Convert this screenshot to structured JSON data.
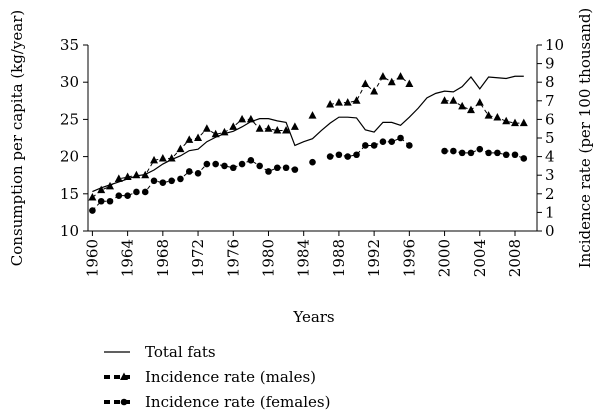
{
  "chart_data": {
    "type": "line",
    "x": [
      1960,
      1961,
      1962,
      1963,
      1964,
      1965,
      1966,
      1967,
      1968,
      1969,
      1970,
      1971,
      1972,
      1973,
      1974,
      1975,
      1976,
      1977,
      1978,
      1979,
      1980,
      1981,
      1982,
      1983,
      1984,
      1985,
      1986,
      1987,
      1988,
      1989,
      1990,
      1991,
      1992,
      1993,
      1994,
      1995,
      1996,
      1997,
      1998,
      1999,
      2000,
      2001,
      2002,
      2003,
      2004,
      2005,
      2006,
      2007,
      2008,
      2009
    ],
    "xlabel": "Years",
    "ylabel": "Consumption per capita (kg/year)",
    "y2label": "Incidence rate (per 100 thousand)",
    "xlim": [
      1959.5,
      2010.5
    ],
    "xticks": [
      1960,
      1964,
      1968,
      1972,
      1976,
      1980,
      1984,
      1988,
      1992,
      1996,
      2000,
      2004,
      2008
    ],
    "ylim": [
      10,
      35
    ],
    "yticks": [
      10,
      15,
      20,
      25,
      30,
      35
    ],
    "y2lim": [
      0,
      10
    ],
    "y2ticks": [
      0,
      1,
      2,
      3,
      4,
      5,
      6,
      7,
      8,
      9,
      10
    ],
    "series": [
      {
        "name": "Total fats",
        "color": "#000000",
        "style": "solid",
        "marker": "none",
        "values": [
          15.3,
          15.8,
          16.2,
          16.6,
          17.0,
          17.4,
          17.6,
          18.2,
          19.0,
          19.6,
          20.1,
          20.8,
          21.0,
          22.0,
          22.6,
          23.1,
          23.4,
          24.0,
          24.7,
          25.1,
          25.1,
          24.8,
          24.6,
          21.5,
          22.0,
          22.4,
          23.5,
          24.5,
          25.3,
          25.3,
          25.2,
          23.6,
          23.3,
          24.6,
          24.6,
          24.2,
          25.3,
          26.5,
          27.9,
          28.5,
          28.8,
          28.7,
          29.4,
          30.7,
          29.1,
          30.7,
          30.6,
          30.5,
          30.8,
          30.8
        ]
      },
      {
        "name": "Incidence rate (males)",
        "color": "#000000",
        "style": "dashed",
        "marker": "triangle",
        "axis": "y2",
        "values": [
          1.8,
          2.2,
          2.4,
          2.8,
          2.9,
          3.0,
          3.0,
          3.8,
          3.9,
          3.9,
          4.4,
          4.9,
          5.0,
          5.5,
          5.2,
          5.3,
          5.6,
          6.0,
          6.0,
          5.5,
          5.5,
          5.4,
          5.4,
          5.6,
          null,
          6.2,
          null,
          6.8,
          6.9,
          6.9,
          7.0,
          7.9,
          7.5,
          8.3,
          8.0,
          8.3,
          7.9,
          null,
          null,
          null,
          7.0,
          7.0,
          6.7,
          6.5,
          6.9,
          6.2,
          6.1,
          5.9,
          5.8,
          5.8
        ]
      },
      {
        "name": "Incidence rate (females)",
        "color": "#000000",
        "style": "dashed",
        "marker": "circle",
        "axis": "y2",
        "values": [
          1.1,
          1.6,
          1.6,
          1.9,
          1.9,
          2.1,
          2.1,
          2.7,
          2.6,
          2.7,
          2.8,
          3.2,
          3.1,
          3.6,
          3.6,
          3.5,
          3.4,
          3.6,
          3.8,
          3.5,
          3.2,
          3.4,
          3.4,
          3.3,
          null,
          3.7,
          null,
          4.0,
          4.1,
          4.0,
          4.1,
          4.6,
          4.6,
          4.8,
          4.8,
          5.0,
          4.6,
          null,
          null,
          null,
          4.3,
          4.3,
          4.2,
          4.2,
          4.4,
          4.2,
          4.2,
          4.1,
          4.1,
          3.9
        ]
      }
    ]
  }
}
